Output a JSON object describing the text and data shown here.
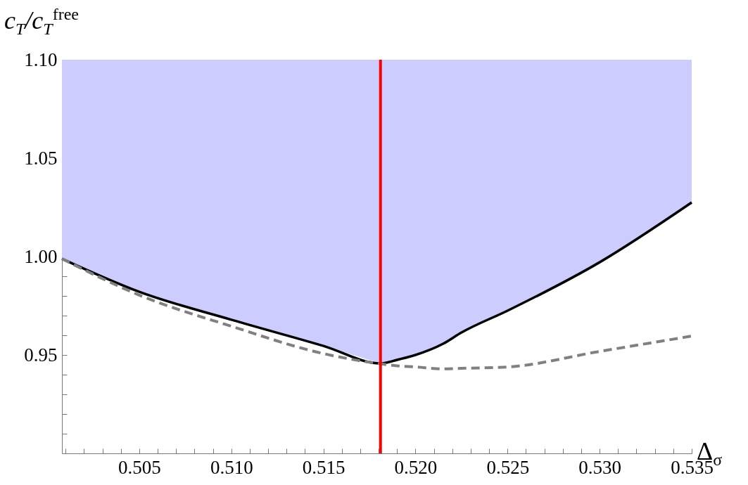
{
  "chart_data": {
    "type": "line",
    "xlabel": "Δ$_{σ}$",
    "ylabel": "c$_{T}$/c$_{T}$$^{free}$",
    "x": [
      0.5008,
      0.505,
      0.51,
      0.515,
      0.5181,
      0.519,
      0.52,
      0.5215,
      0.5225,
      0.525,
      0.53,
      0.535
    ],
    "series": [
      {
        "type": "area",
        "color": "#ccccff",
        "values": [
          1.1,
          1.1,
          1.1,
          1.1,
          1.1,
          1.1,
          1.1,
          1.1,
          1.1,
          1.1,
          1.1,
          1.1
        ]
      },
      {
        "color": "#000000",
        "values": [
          0.9989,
          0.9821,
          0.9679,
          0.9546,
          0.9457,
          0.9475,
          0.95,
          0.9557,
          0.9614,
          0.9725,
          0.9971,
          1.0275
        ]
      },
      {
        "color": "#808080",
        "line_style": "dashed",
        "values": [
          0.9989,
          0.9804,
          0.9646,
          0.9507,
          0.9455,
          0.9445,
          0.9439,
          0.9429,
          0.9432,
          0.9439,
          0.9518,
          0.9596
        ]
      }
    ],
    "ref_lines": [
      {
        "axis": "x",
        "value": 0.5181,
        "color": "#ff0000"
      }
    ],
    "xlim": [
      0.5008,
      0.535
    ],
    "ylim": [
      0.9,
      1.1
    ],
    "xticks": [
      {
        "value": 0.501,
        "label": null
      },
      {
        "value": 0.502,
        "label": null
      },
      {
        "value": 0.503,
        "label": null
      },
      {
        "value": 0.504,
        "label": null
      },
      0.505,
      {
        "value": 0.506,
        "label": null
      },
      {
        "value": 0.507,
        "label": null
      },
      {
        "value": 0.508,
        "label": null
      },
      {
        "value": 0.509,
        "label": null
      },
      {
        "value": 0.51,
        "label": "0.510"
      },
      {
        "value": 0.511,
        "label": null
      },
      {
        "value": 0.512,
        "label": null
      },
      {
        "value": 0.513,
        "label": null
      },
      {
        "value": 0.514,
        "label": null
      },
      0.515,
      {
        "value": 0.516,
        "label": null
      },
      {
        "value": 0.517,
        "label": null
      },
      {
        "value": 0.518,
        "label": null
      },
      {
        "value": 0.519,
        "label": null
      },
      {
        "value": 0.52,
        "label": "0.520"
      },
      {
        "value": 0.521,
        "label": null
      },
      {
        "value": 0.522,
        "label": null
      },
      {
        "value": 0.523,
        "label": null
      },
      {
        "value": 0.524,
        "label": null
      },
      0.525,
      {
        "value": 0.526,
        "label": null
      },
      {
        "value": 0.527,
        "label": null
      },
      {
        "value": 0.528,
        "label": null
      },
      {
        "value": 0.529,
        "label": null
      },
      {
        "value": 0.53,
        "label": "0.530"
      },
      {
        "value": 0.531,
        "label": null
      },
      {
        "value": 0.532,
        "label": null
      },
      {
        "value": 0.533,
        "label": null
      },
      {
        "value": 0.534,
        "label": null
      },
      0.535
    ],
    "yticks": [
      {
        "value": 0.91,
        "label": null
      },
      {
        "value": 0.92,
        "label": null
      },
      {
        "value": 0.93,
        "label": null
      },
      {
        "value": 0.94,
        "label": null
      },
      0.95,
      {
        "value": 0.96,
        "label": null
      },
      {
        "value": 0.97,
        "label": null
      },
      {
        "value": 0.98,
        "label": null
      },
      {
        "value": 0.99,
        "label": null
      },
      {
        "value": 1.0,
        "label": "1.00"
      },
      {
        "value": 1.01,
        "label": null
      },
      {
        "value": 1.02,
        "label": null
      },
      {
        "value": 1.03,
        "label": null
      },
      {
        "value": 1.04,
        "label": null
      },
      1.05,
      {
        "value": 1.06,
        "label": null
      },
      {
        "value": 1.07,
        "label": null
      },
      {
        "value": 1.08,
        "label": null
      },
      {
        "value": 1.09,
        "label": null
      },
      {
        "value": 1.1,
        "label": "1.10"
      }
    ],
    "grid": false
  }
}
